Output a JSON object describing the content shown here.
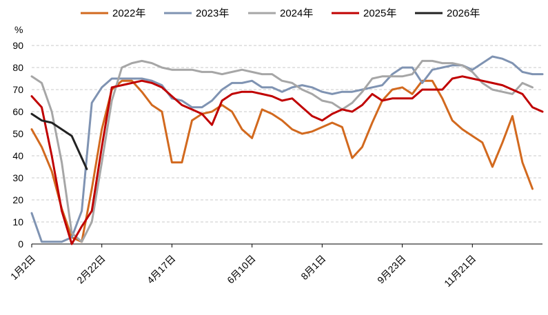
{
  "chart_data": {
    "type": "line",
    "title": "",
    "unit": "%",
    "xlabel": "",
    "ylabel": "",
    "ylim": [
      0,
      90
    ],
    "yticks": [
      0,
      10,
      20,
      30,
      40,
      50,
      60,
      70,
      80,
      90
    ],
    "grid": "horizontal dashed",
    "legend_position": "top",
    "x_period_count": 52,
    "x_tick_labels": [
      {
        "label": "1月2日",
        "index": 0
      },
      {
        "label": "2月22日",
        "index": 7
      },
      {
        "label": "4月17日",
        "index": 14
      },
      {
        "label": "6月10日",
        "index": 22
      },
      {
        "label": "8月1日",
        "index": 29
      },
      {
        "label": "9月23日",
        "index": 37
      },
      {
        "label": "11月21日",
        "index": 44
      }
    ],
    "series": [
      {
        "name": "2022年",
        "color": "#D2691E",
        "values": [
          52,
          44,
          33,
          16,
          3,
          1,
          25,
          52,
          70,
          74,
          74,
          69,
          63,
          60,
          37,
          37,
          56,
          59,
          60,
          63,
          60,
          52,
          48,
          61,
          59,
          56,
          52,
          50,
          51,
          53,
          55,
          53,
          39,
          44,
          55,
          65,
          70,
          71,
          68,
          74,
          74,
          66,
          56,
          52,
          49,
          46,
          35,
          46,
          58,
          37,
          25
        ]
      },
      {
        "name": "2023年",
        "color": "#7F93B2",
        "values": [
          14,
          1,
          1,
          1,
          3,
          15,
          64,
          71,
          75,
          75,
          75,
          75,
          74,
          72,
          66,
          65,
          62,
          62,
          65,
          70,
          73,
          73,
          74,
          71,
          71,
          69,
          71,
          72,
          71,
          69,
          68,
          69,
          69,
          70,
          71,
          72,
          77,
          80,
          80,
          73,
          79,
          80,
          81,
          81,
          79,
          82,
          85,
          84,
          82,
          78,
          77,
          77
        ]
      },
      {
        "name": "2024年",
        "color": "#A6A6A6",
        "values": [
          76,
          73,
          60,
          37,
          5,
          1,
          10,
          37,
          65,
          80,
          82,
          83,
          82,
          80,
          79,
          79,
          79,
          78,
          78,
          77,
          78,
          79,
          78,
          77,
          77,
          74,
          73,
          70,
          68,
          65,
          64,
          61,
          64,
          69,
          75,
          76,
          76,
          76,
          77,
          83,
          83,
          82,
          82,
          81,
          78,
          73,
          70,
          69,
          68,
          73,
          71
        ]
      },
      {
        "name": "2025年",
        "color": "#C00000",
        "values": [
          67,
          62,
          40,
          15,
          0,
          8,
          15,
          44,
          71,
          72,
          73,
          74,
          73,
          71,
          67,
          63,
          61,
          59,
          54,
          65,
          68,
          69,
          69,
          68,
          67,
          65,
          66,
          62,
          58,
          56,
          59,
          61,
          60,
          63,
          68,
          65,
          66,
          66,
          66,
          70,
          70,
          70,
          75,
          76,
          75,
          74,
          73,
          72,
          70,
          68,
          62,
          60
        ]
      },
      {
        "name": "2026年",
        "color": "#222222",
        "values": [
          59,
          56,
          55,
          52,
          49,
          34
        ]
      }
    ],
    "x_indexes_2026": [
      0,
      1,
      2,
      3,
      4,
      5.5
    ]
  }
}
